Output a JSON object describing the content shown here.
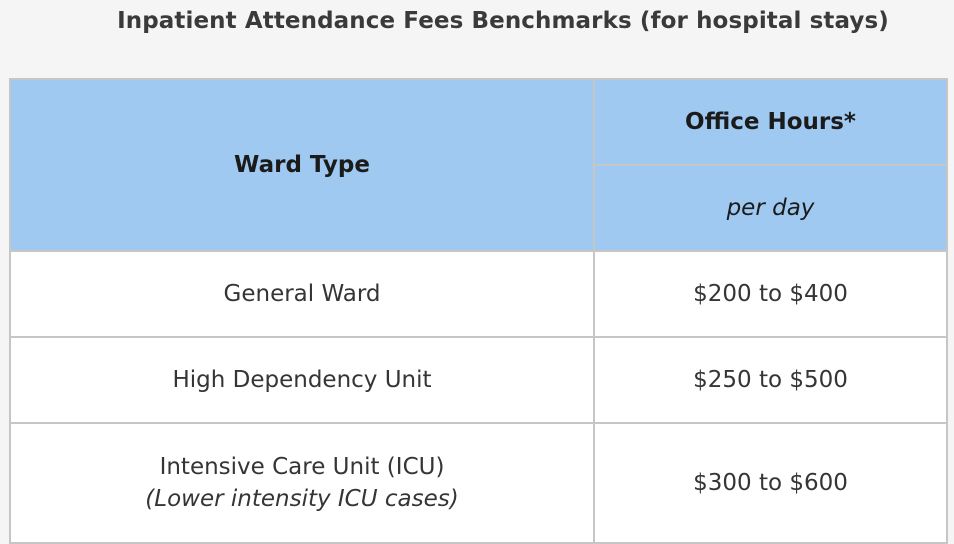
{
  "title": "Inpatient Attendance Fees Benchmarks (for hospital stays)",
  "table": {
    "headers": {
      "ward_type": "Ward Type",
      "office_hours": "Office Hours*",
      "per_day": "per day"
    },
    "rows": [
      {
        "ward": "General Ward",
        "note": "",
        "fee": "$200 to $400"
      },
      {
        "ward": "High Dependency Unit",
        "note": "",
        "fee": "$250 to $500"
      },
      {
        "ward": "Intensive Care Unit (ICU)",
        "note": "(Lower intensity ICU cases)",
        "fee": "$300 to $600"
      }
    ]
  }
}
